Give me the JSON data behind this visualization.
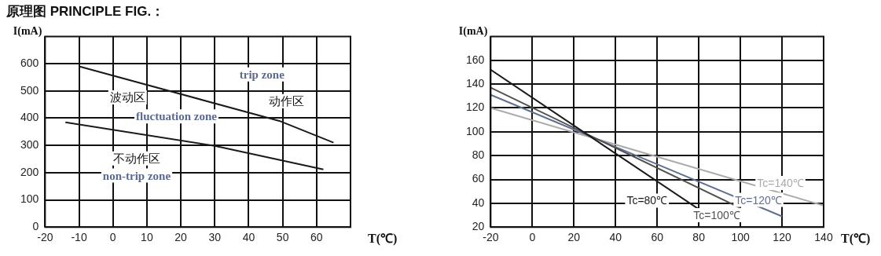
{
  "chart_data": [
    {
      "type": "line",
      "title": "原理图 PRINCIPLE FIG.：",
      "xlabel": "T(℃)",
      "ylabel": "I(mA)",
      "xlim": [
        -20,
        70
      ],
      "xticks": [
        -20,
        -10,
        0,
        10,
        20,
        30,
        40,
        50,
        60
      ],
      "ylim": [
        0,
        700
      ],
      "yticks": [
        0,
        100,
        200,
        300,
        400,
        500,
        600
      ],
      "grid": true,
      "legend": false,
      "marker": "none",
      "annotations": [
        "trip zone",
        "动作区",
        "波动区",
        "fluctuation zone",
        "不动作区",
        "non-trip zone"
      ],
      "series": [
        {
          "color": "#1a1a1a",
          "x": [
            -10,
            49,
            65
          ],
          "values": [
            590,
            390,
            310
          ]
        },
        {
          "color": "#1a1a1a",
          "x": [
            -14,
            30,
            62
          ],
          "values": [
            385,
            298,
            212
          ]
        }
      ]
    },
    {
      "type": "line",
      "xlabel": "T(℃)",
      "ylabel": "I(mA)",
      "xlim": [
        -20,
        140
      ],
      "xticks": [
        -20,
        0,
        20,
        40,
        60,
        80,
        100,
        120,
        140
      ],
      "ylim": [
        20,
        180
      ],
      "yticks": [
        20,
        40,
        60,
        80,
        100,
        120,
        140,
        160
      ],
      "grid": true,
      "legend": false,
      "marker": "none",
      "series": [
        {
          "name": "Tc=80℃",
          "color": "#1a1a1a",
          "x": [
            -20,
            80
          ],
          "values": [
            152,
            35
          ]
        },
        {
          "name": "Tc=100℃",
          "color": "#505050",
          "x": [
            -20,
            100
          ],
          "values": [
            137,
            36
          ]
        },
        {
          "name": "Tc=120℃",
          "color": "#5f6f8f",
          "x": [
            -20,
            120
          ],
          "values": [
            131,
            29
          ]
        },
        {
          "name": "Tc=140℃",
          "color": "#ababab",
          "x": [
            -20,
            140
          ],
          "values": [
            120,
            38
          ]
        }
      ]
    }
  ]
}
